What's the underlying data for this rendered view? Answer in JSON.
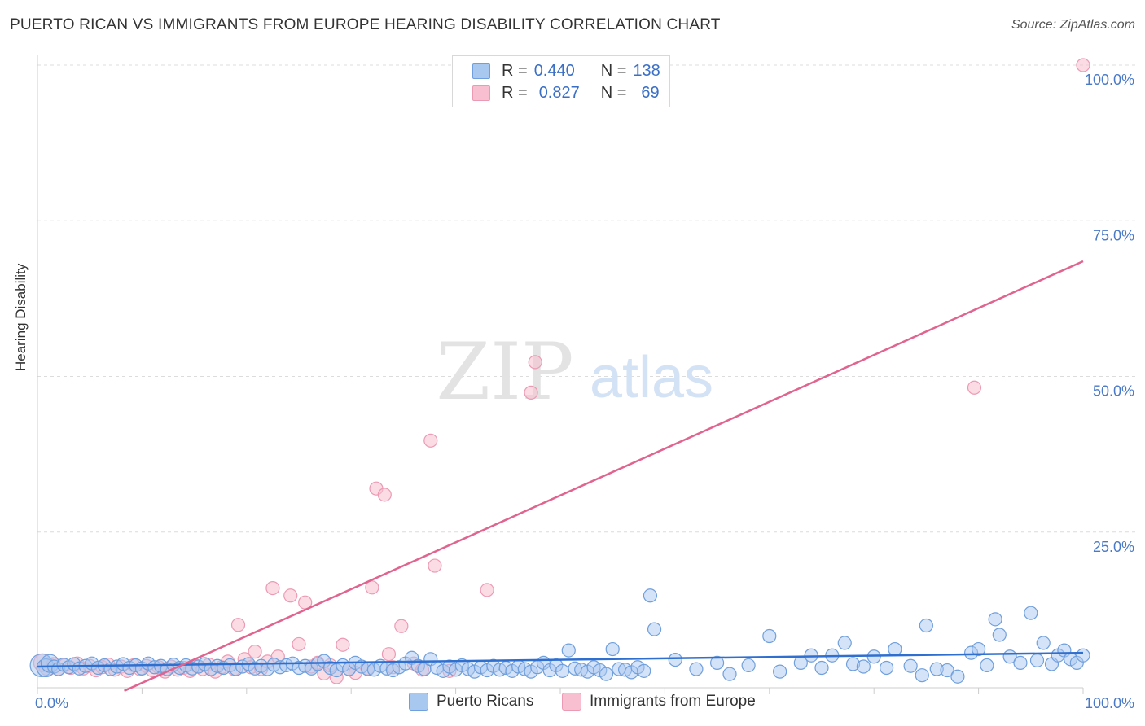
{
  "header": {
    "title": "PUERTO RICAN VS IMMIGRANTS FROM EUROPE HEARING DISABILITY CORRELATION CHART",
    "source": "Source: ZipAtlas.com"
  },
  "watermark": {
    "zip": "ZIP",
    "atlas": "atlas"
  },
  "legend": {
    "r_label": "R =",
    "n_label": "N =",
    "series1": {
      "r": "0.440",
      "n": "138"
    },
    "series2": {
      "r": "0.827",
      "n": "69"
    }
  },
  "bottom_legend": {
    "series1": "Puerto Ricans",
    "series2": "Immigrants from Europe"
  },
  "colors": {
    "blue_fill": "#a9c8f0",
    "blue_stroke": "#6f9fdc",
    "blue_line": "#2f6fd0",
    "pink_fill": "#f7bfd0",
    "pink_stroke": "#ec9ab4",
    "pink_line": "#e0648f",
    "tick_text": "#4a7ac7",
    "grid": "#dcdcdc"
  },
  "chart_data": {
    "type": "scatter",
    "title": "PUERTO RICAN VS IMMIGRANTS FROM EUROPE HEARING DISABILITY CORRELATION CHART",
    "xlabel": "",
    "ylabel": "Hearing Disability",
    "xlim": [
      0,
      100
    ],
    "ylim": [
      0,
      100
    ],
    "x_tick_labels": [
      "0.0%",
      "100.0%"
    ],
    "y_tick_labels": [
      "25.0%",
      "50.0%",
      "75.0%",
      "100.0%"
    ],
    "y_ticks": [
      25,
      50,
      75,
      100
    ],
    "series": [
      {
        "name": "Puerto Ricans",
        "r": 0.44,
        "n": 138,
        "trend": {
          "x": [
            0,
            100
          ],
          "y": [
            3.4,
            5.6
          ]
        },
        "points": [
          [
            0.4,
            3.6
          ],
          [
            0.8,
            3.2
          ],
          [
            1.2,
            3.9
          ],
          [
            1.6,
            3.4
          ],
          [
            2.0,
            3.0
          ],
          [
            2.5,
            3.7
          ],
          [
            3.0,
            3.3
          ],
          [
            3.5,
            3.8
          ],
          [
            4.0,
            3.1
          ],
          [
            4.6,
            3.5
          ],
          [
            5.2,
            3.9
          ],
          [
            5.8,
            3.2
          ],
          [
            6.4,
            3.6
          ],
          [
            7.0,
            3.0
          ],
          [
            7.6,
            3.4
          ],
          [
            8.2,
            3.8
          ],
          [
            8.8,
            3.2
          ],
          [
            9.4,
            3.6
          ],
          [
            10.0,
            3.1
          ],
          [
            10.6,
            3.9
          ],
          [
            11.2,
            3.3
          ],
          [
            11.8,
            3.5
          ],
          [
            12.4,
            3.0
          ],
          [
            13.0,
            3.7
          ],
          [
            13.6,
            3.2
          ],
          [
            14.2,
            3.6
          ],
          [
            14.8,
            3.1
          ],
          [
            15.4,
            3.4
          ],
          [
            16.0,
            3.8
          ],
          [
            16.6,
            3.0
          ],
          [
            17.2,
            3.5
          ],
          [
            17.8,
            3.2
          ],
          [
            18.4,
            3.6
          ],
          [
            19.0,
            3.0
          ],
          [
            19.6,
            3.4
          ],
          [
            20.2,
            3.8
          ],
          [
            20.8,
            3.1
          ],
          [
            21.4,
            3.5
          ],
          [
            22.0,
            3.0
          ],
          [
            22.6,
            3.7
          ],
          [
            23.2,
            3.3
          ],
          [
            23.8,
            3.6
          ],
          [
            24.4,
            3.9
          ],
          [
            25.0,
            3.2
          ],
          [
            25.6,
            3.5
          ],
          [
            26.2,
            3.1
          ],
          [
            26.8,
            3.8
          ],
          [
            27.4,
            4.3
          ],
          [
            28.0,
            3.2
          ],
          [
            28.6,
            2.8
          ],
          [
            29.2,
            3.6
          ],
          [
            29.8,
            3.0
          ],
          [
            30.4,
            4.0
          ],
          [
            31.0,
            3.4
          ],
          [
            31.6,
            3.0
          ],
          [
            32.2,
            2.9
          ],
          [
            32.8,
            3.5
          ],
          [
            33.4,
            3.1
          ],
          [
            34.0,
            2.8
          ],
          [
            34.6,
            3.3
          ],
          [
            35.2,
            3.9
          ],
          [
            35.8,
            4.8
          ],
          [
            36.4,
            3.5
          ],
          [
            37.0,
            3.0
          ],
          [
            37.6,
            4.6
          ],
          [
            38.2,
            3.2
          ],
          [
            38.8,
            2.7
          ],
          [
            39.4,
            3.4
          ],
          [
            40.0,
            2.9
          ],
          [
            40.6,
            3.6
          ],
          [
            41.2,
            3.0
          ],
          [
            41.8,
            2.6
          ],
          [
            42.4,
            3.3
          ],
          [
            43.0,
            2.8
          ],
          [
            43.6,
            3.5
          ],
          [
            44.2,
            2.9
          ],
          [
            44.8,
            3.2
          ],
          [
            45.4,
            2.7
          ],
          [
            46.0,
            3.4
          ],
          [
            46.6,
            3.0
          ],
          [
            47.2,
            2.6
          ],
          [
            47.8,
            3.3
          ],
          [
            48.4,
            4.0
          ],
          [
            49.0,
            2.8
          ],
          [
            49.6,
            3.6
          ],
          [
            50.2,
            2.7
          ],
          [
            50.8,
            6.0
          ],
          [
            51.4,
            3.1
          ],
          [
            52.0,
            2.9
          ],
          [
            52.6,
            2.6
          ],
          [
            53.2,
            3.3
          ],
          [
            53.8,
            2.8
          ],
          [
            54.4,
            2.2
          ],
          [
            55.0,
            6.2
          ],
          [
            55.6,
            3.0
          ],
          [
            56.2,
            2.9
          ],
          [
            56.8,
            2.5
          ],
          [
            57.4,
            3.3
          ],
          [
            58.0,
            2.7
          ],
          [
            58.6,
            14.8
          ],
          [
            59.0,
            9.4
          ],
          [
            61.0,
            4.5
          ],
          [
            63.0,
            3.0
          ],
          [
            65.0,
            4.0
          ],
          [
            66.2,
            2.2
          ],
          [
            68.0,
            3.6
          ],
          [
            70.0,
            8.3
          ],
          [
            71.0,
            2.6
          ],
          [
            73.0,
            4.0
          ],
          [
            74.0,
            5.2
          ],
          [
            75.0,
            3.2
          ],
          [
            76.0,
            5.2
          ],
          [
            77.2,
            7.2
          ],
          [
            78.0,
            3.8
          ],
          [
            79.0,
            3.4
          ],
          [
            80.0,
            5.0
          ],
          [
            81.2,
            3.2
          ],
          [
            82.0,
            6.2
          ],
          [
            83.5,
            3.5
          ],
          [
            84.6,
            2.0
          ],
          [
            85.0,
            10.0
          ],
          [
            86.0,
            3.0
          ],
          [
            87.0,
            2.8
          ],
          [
            88.0,
            1.8
          ],
          [
            89.3,
            5.6
          ],
          [
            90.0,
            6.2
          ],
          [
            90.8,
            3.6
          ],
          [
            91.6,
            11.0
          ],
          [
            92.0,
            8.5
          ],
          [
            93.0,
            5.0
          ],
          [
            94.0,
            4.0
          ],
          [
            95.0,
            12.0
          ],
          [
            95.6,
            4.4
          ],
          [
            96.2,
            7.2
          ],
          [
            97.0,
            3.8
          ],
          [
            97.6,
            5.2
          ],
          [
            98.2,
            6.0
          ],
          [
            98.8,
            4.6
          ],
          [
            99.4,
            4.0
          ],
          [
            100.0,
            5.2
          ]
        ]
      },
      {
        "name": "Immigrants from Europe",
        "r": 0.827,
        "n": 69,
        "trend": {
          "x": [
            8.3,
            100
          ],
          "y": [
            -0.5,
            68.5
          ]
        },
        "points": [
          [
            0.5,
            4.0
          ],
          [
            1.0,
            3.4
          ],
          [
            1.5,
            3.8
          ],
          [
            2.0,
            3.0
          ],
          [
            2.6,
            3.6
          ],
          [
            3.2,
            3.2
          ],
          [
            3.8,
            3.9
          ],
          [
            4.4,
            3.1
          ],
          [
            5.0,
            3.5
          ],
          [
            5.6,
            2.8
          ],
          [
            6.2,
            3.3
          ],
          [
            6.8,
            3.7
          ],
          [
            7.4,
            2.9
          ],
          [
            8.0,
            3.4
          ],
          [
            8.6,
            2.7
          ],
          [
            9.2,
            3.6
          ],
          [
            9.8,
            3.0
          ],
          [
            10.4,
            3.5
          ],
          [
            11.0,
            2.8
          ],
          [
            11.6,
            3.3
          ],
          [
            12.2,
            2.6
          ],
          [
            12.8,
            3.4
          ],
          [
            13.4,
            2.9
          ],
          [
            14.0,
            3.2
          ],
          [
            14.6,
            2.7
          ],
          [
            15.2,
            3.5
          ],
          [
            15.8,
            3.0
          ],
          [
            16.4,
            3.7
          ],
          [
            17.0,
            2.6
          ],
          [
            17.6,
            3.3
          ],
          [
            18.2,
            4.2
          ],
          [
            18.8,
            3.0
          ],
          [
            19.2,
            10.1
          ],
          [
            19.8,
            4.6
          ],
          [
            20.4,
            3.3
          ],
          [
            20.8,
            5.8
          ],
          [
            21.4,
            3.0
          ],
          [
            22.0,
            4.2
          ],
          [
            22.5,
            16.0
          ],
          [
            23.0,
            5.0
          ],
          [
            24.2,
            14.8
          ],
          [
            25.0,
            7.0
          ],
          [
            25.6,
            13.7
          ],
          [
            26.2,
            3.4
          ],
          [
            26.8,
            4.0
          ],
          [
            27.4,
            2.3
          ],
          [
            28.0,
            3.6
          ],
          [
            28.6,
            1.7
          ],
          [
            29.2,
            6.9
          ],
          [
            29.8,
            3.0
          ],
          [
            30.4,
            2.4
          ],
          [
            31.6,
            3.1
          ],
          [
            32.0,
            16.1
          ],
          [
            32.4,
            32.0
          ],
          [
            33.2,
            31.0
          ],
          [
            33.6,
            5.4
          ],
          [
            34.0,
            3.3
          ],
          [
            34.8,
            9.9
          ],
          [
            36.0,
            3.9
          ],
          [
            36.8,
            2.9
          ],
          [
            37.6,
            39.7
          ],
          [
            38.0,
            19.6
          ],
          [
            39.4,
            2.7
          ],
          [
            43.0,
            15.7
          ],
          [
            47.2,
            47.4
          ],
          [
            47.6,
            52.3
          ],
          [
            89.6,
            48.2
          ],
          [
            100.0,
            100.0
          ]
        ]
      }
    ]
  }
}
